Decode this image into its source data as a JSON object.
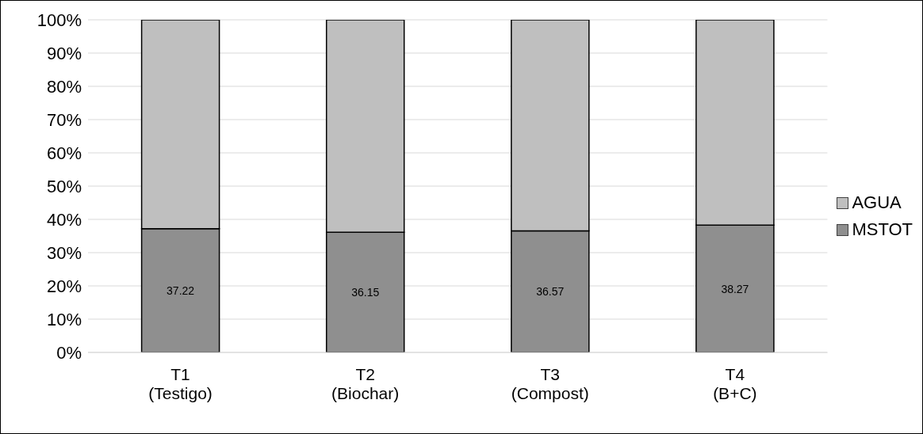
{
  "chart_data": {
    "type": "bar",
    "stacked": true,
    "categories": [
      "T1\n(Testigo)",
      "T2\n(Biochar)",
      "T3\n(Compost)",
      "T4\n(B+C)"
    ],
    "series": [
      {
        "name": "MSTOT",
        "color": "#8f8f8f",
        "values": [
          37.22,
          36.15,
          36.57,
          38.27
        ],
        "value_labels": [
          "37.22",
          "36.15",
          "36.57",
          "38.27"
        ]
      },
      {
        "name": "AGUA",
        "color": "#bfbfbf",
        "values": [
          62.78,
          63.85,
          63.43,
          61.73
        ]
      }
    ],
    "ylim": [
      0,
      100
    ],
    "yticks": [
      {
        "value": 0,
        "label": "0%"
      },
      {
        "value": 10,
        "label": "10%"
      },
      {
        "value": 20,
        "label": "20%"
      },
      {
        "value": 30,
        "label": "30%"
      },
      {
        "value": 40,
        "label": "40%"
      },
      {
        "value": 50,
        "label": "50%"
      },
      {
        "value": 60,
        "label": "60%"
      },
      {
        "value": 70,
        "label": "70%"
      },
      {
        "value": 80,
        "label": "80%"
      },
      {
        "value": 90,
        "label": "90%"
      },
      {
        "value": 100,
        "label": "100%"
      }
    ],
    "grid": "y",
    "legend": "right"
  }
}
